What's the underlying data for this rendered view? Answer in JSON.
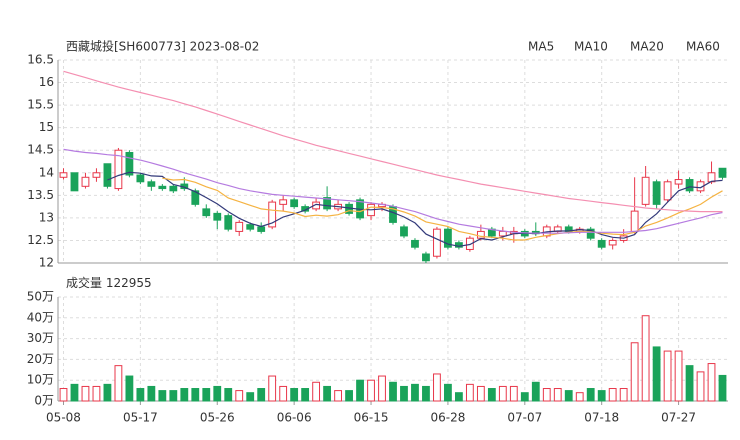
{
  "chart_data": [
    {
      "type": "candlestick",
      "title": "西藏城投[SH600773] 2023-08-02",
      "categories": [
        "05-08",
        null,
        null,
        null,
        null,
        null,
        null,
        "05-17",
        null,
        null,
        null,
        null,
        null,
        null,
        "05-26",
        null,
        null,
        null,
        null,
        null,
        null,
        "06-06",
        null,
        null,
        null,
        null,
        null,
        null,
        "06-15",
        null,
        null,
        null,
        null,
        null,
        null,
        "06-28",
        null,
        null,
        null,
        null,
        null,
        null,
        "07-07",
        null,
        null,
        null,
        null,
        null,
        null,
        "07-18",
        null,
        null,
        null,
        null,
        null,
        null,
        "07-27",
        null,
        null,
        null,
        null
      ],
      "open": [
        13.9,
        14.0,
        13.7,
        13.9,
        14.2,
        13.65,
        14.45,
        13.95,
        13.8,
        13.7,
        13.7,
        13.75,
        13.6,
        13.2,
        13.1,
        13.05,
        12.7,
        12.85,
        12.8,
        12.8,
        13.3,
        13.4,
        13.25,
        13.2,
        13.45,
        13.2,
        13.3,
        13.4,
        13.05,
        13.25,
        13.25,
        12.8,
        12.5,
        12.2,
        12.15,
        12.75,
        12.45,
        12.3,
        12.55,
        12.75,
        12.6,
        12.65,
        12.7,
        12.7,
        12.6,
        12.7,
        12.8,
        12.7,
        12.75,
        12.5,
        12.4,
        12.5,
        12.7,
        13.3,
        13.8,
        13.4,
        13.75,
        13.85,
        13.6,
        13.8,
        14.1
      ],
      "high": [
        14.1,
        14.0,
        14.0,
        14.1,
        14.2,
        14.55,
        14.5,
        14.0,
        13.85,
        13.75,
        13.75,
        13.9,
        13.65,
        13.3,
        13.15,
        13.1,
        12.95,
        12.9,
        12.9,
        13.4,
        13.5,
        13.45,
        13.3,
        13.45,
        13.7,
        13.4,
        13.35,
        13.45,
        13.35,
        13.35,
        13.3,
        12.85,
        12.55,
        12.25,
        12.8,
        12.8,
        12.5,
        12.6,
        12.85,
        12.8,
        12.8,
        12.8,
        12.75,
        12.9,
        12.85,
        12.85,
        12.85,
        12.8,
        12.8,
        12.55,
        12.55,
        12.75,
        13.9,
        14.15,
        13.85,
        13.85,
        14.05,
        13.9,
        13.85,
        14.25,
        14.1
      ],
      "low": [
        13.85,
        13.6,
        13.65,
        13.8,
        13.65,
        13.6,
        13.9,
        13.75,
        13.6,
        13.6,
        13.55,
        13.6,
        13.25,
        13.0,
        12.75,
        12.7,
        12.6,
        12.7,
        12.65,
        12.75,
        13.15,
        13.2,
        13.1,
        13.15,
        13.15,
        13.15,
        13.05,
        12.95,
        12.95,
        13.15,
        12.85,
        12.55,
        12.3,
        12.0,
        12.1,
        12.3,
        12.3,
        12.25,
        12.5,
        12.55,
        12.5,
        12.45,
        12.55,
        12.6,
        12.55,
        12.65,
        12.65,
        12.65,
        12.5,
        12.3,
        12.3,
        12.45,
        12.65,
        13.25,
        13.2,
        13.35,
        13.65,
        13.55,
        13.55,
        13.75,
        13.85
      ],
      "close": [
        14.0,
        13.6,
        13.9,
        14.0,
        13.7,
        14.5,
        13.95,
        13.8,
        13.7,
        13.65,
        13.6,
        13.65,
        13.3,
        13.05,
        12.95,
        12.75,
        12.9,
        12.75,
        12.7,
        13.35,
        13.4,
        13.25,
        13.15,
        13.35,
        13.2,
        13.3,
        13.1,
        13.0,
        13.3,
        13.3,
        12.9,
        12.6,
        12.35,
        12.05,
        12.75,
        12.35,
        12.35,
        12.55,
        12.7,
        12.6,
        12.7,
        12.7,
        12.6,
        12.65,
        12.8,
        12.8,
        12.7,
        12.75,
        12.55,
        12.35,
        12.5,
        12.6,
        13.15,
        13.9,
        13.3,
        13.8,
        13.85,
        13.6,
        13.8,
        14.0,
        13.9
      ],
      "up_color": "#e8374a",
      "down_color": "#1aa35a",
      "series": [
        {
          "name": "MA5",
          "color": "#333a7a",
          "values": [
            null,
            null,
            null,
            null,
            13.84,
            13.94,
            14.01,
            13.99,
            13.93,
            13.92,
            13.74,
            13.68,
            13.58,
            13.45,
            13.31,
            13.14,
            12.99,
            12.88,
            12.81,
            12.89,
            13.02,
            13.09,
            13.17,
            13.3,
            13.27,
            13.25,
            13.22,
            13.19,
            13.18,
            13.2,
            13.12,
            13.02,
            12.89,
            12.64,
            12.53,
            12.42,
            12.37,
            12.41,
            12.54,
            12.51,
            12.58,
            12.65,
            12.66,
            12.65,
            12.69,
            12.71,
            12.71,
            12.74,
            12.72,
            12.63,
            12.57,
            12.55,
            12.63,
            12.9,
            13.09,
            13.35,
            13.6,
            13.69,
            13.67,
            13.81,
            13.83
          ]
        },
        {
          "name": "MA10",
          "color": "#f5b342",
          "values": [
            null,
            null,
            null,
            null,
            null,
            null,
            null,
            null,
            null,
            13.88,
            13.84,
            13.85,
            13.79,
            13.69,
            13.61,
            13.44,
            13.36,
            13.28,
            13.2,
            13.17,
            13.15,
            13.11,
            13.03,
            13.06,
            13.04,
            13.07,
            13.16,
            13.14,
            13.24,
            13.23,
            13.2,
            13.13,
            13.04,
            12.91,
            12.86,
            12.81,
            12.7,
            12.65,
            12.59,
            12.57,
            12.55,
            12.51,
            12.51,
            12.57,
            12.61,
            12.65,
            12.68,
            12.7,
            12.69,
            12.66,
            12.64,
            12.63,
            12.68,
            12.82,
            12.9,
            13.0,
            13.11,
            13.2,
            13.3,
            13.46,
            13.6
          ]
        },
        {
          "name": "MA20",
          "color": "#b57be0",
          "values": [
            14.52,
            14.48,
            14.45,
            14.43,
            14.4,
            14.38,
            14.33,
            14.28,
            14.22,
            14.15,
            14.08,
            14.0,
            13.93,
            13.86,
            13.78,
            13.72,
            13.65,
            13.6,
            13.56,
            13.52,
            13.5,
            13.48,
            13.46,
            13.44,
            13.42,
            13.4,
            13.38,
            13.36,
            13.33,
            13.3,
            13.26,
            13.2,
            13.14,
            13.06,
            12.98,
            12.92,
            12.86,
            12.82,
            12.78,
            12.74,
            12.71,
            12.68,
            12.67,
            12.66,
            12.66,
            12.66,
            12.67,
            12.68,
            12.68,
            12.68,
            12.68,
            12.68,
            12.7,
            12.72,
            12.76,
            12.82,
            12.88,
            12.94,
            13.0,
            13.07,
            13.12
          ]
        },
        {
          "name": "MA60",
          "color": "#f48fb1",
          "values": [
            16.25,
            16.18,
            16.11,
            16.04,
            15.97,
            15.9,
            15.84,
            15.78,
            15.72,
            15.66,
            15.6,
            15.53,
            15.46,
            15.38,
            15.3,
            15.22,
            15.14,
            15.06,
            14.98,
            14.9,
            14.82,
            14.75,
            14.68,
            14.61,
            14.55,
            14.49,
            14.43,
            14.37,
            14.31,
            14.25,
            14.19,
            14.13,
            14.07,
            14.01,
            13.95,
            13.9,
            13.85,
            13.8,
            13.75,
            13.71,
            13.67,
            13.63,
            13.59,
            13.55,
            13.51,
            13.47,
            13.43,
            13.4,
            13.37,
            13.34,
            13.31,
            13.28,
            13.25,
            13.22,
            13.2,
            13.18,
            13.16,
            13.15,
            13.14,
            13.14,
            13.14
          ]
        }
      ],
      "ylim": [
        12,
        16.5
      ],
      "yticks": [
        12,
        12.5,
        13,
        13.5,
        14,
        14.5,
        15,
        15.5,
        16,
        16.5
      ],
      "grid": true
    },
    {
      "type": "bar",
      "title": "成交量",
      "last_volume": 122955,
      "values": [
        6,
        8,
        7,
        7,
        8,
        17,
        12,
        6,
        7,
        5,
        5,
        6,
        6,
        6,
        7,
        6,
        5,
        4,
        6,
        12,
        7,
        6,
        6,
        9,
        7,
        5,
        5,
        10,
        10,
        12,
        9,
        7,
        8,
        7,
        13,
        8,
        4,
        8,
        7,
        6,
        7,
        7,
        4,
        9,
        6,
        6,
        5,
        4,
        6,
        5,
        6,
        6,
        28,
        41,
        26,
        24,
        24,
        17,
        14,
        18,
        12.2955
      ],
      "ylim": [
        0,
        50
      ],
      "yticks": [
        {
          "value": 0,
          "label": "0万"
        },
        {
          "value": 10,
          "label": "10万"
        },
        {
          "value": 20,
          "label": "20万"
        },
        {
          "value": 30,
          "label": "30万"
        },
        {
          "value": 40,
          "label": "40万"
        },
        {
          "value": 50,
          "label": "50万"
        }
      ],
      "grid": true
    }
  ]
}
